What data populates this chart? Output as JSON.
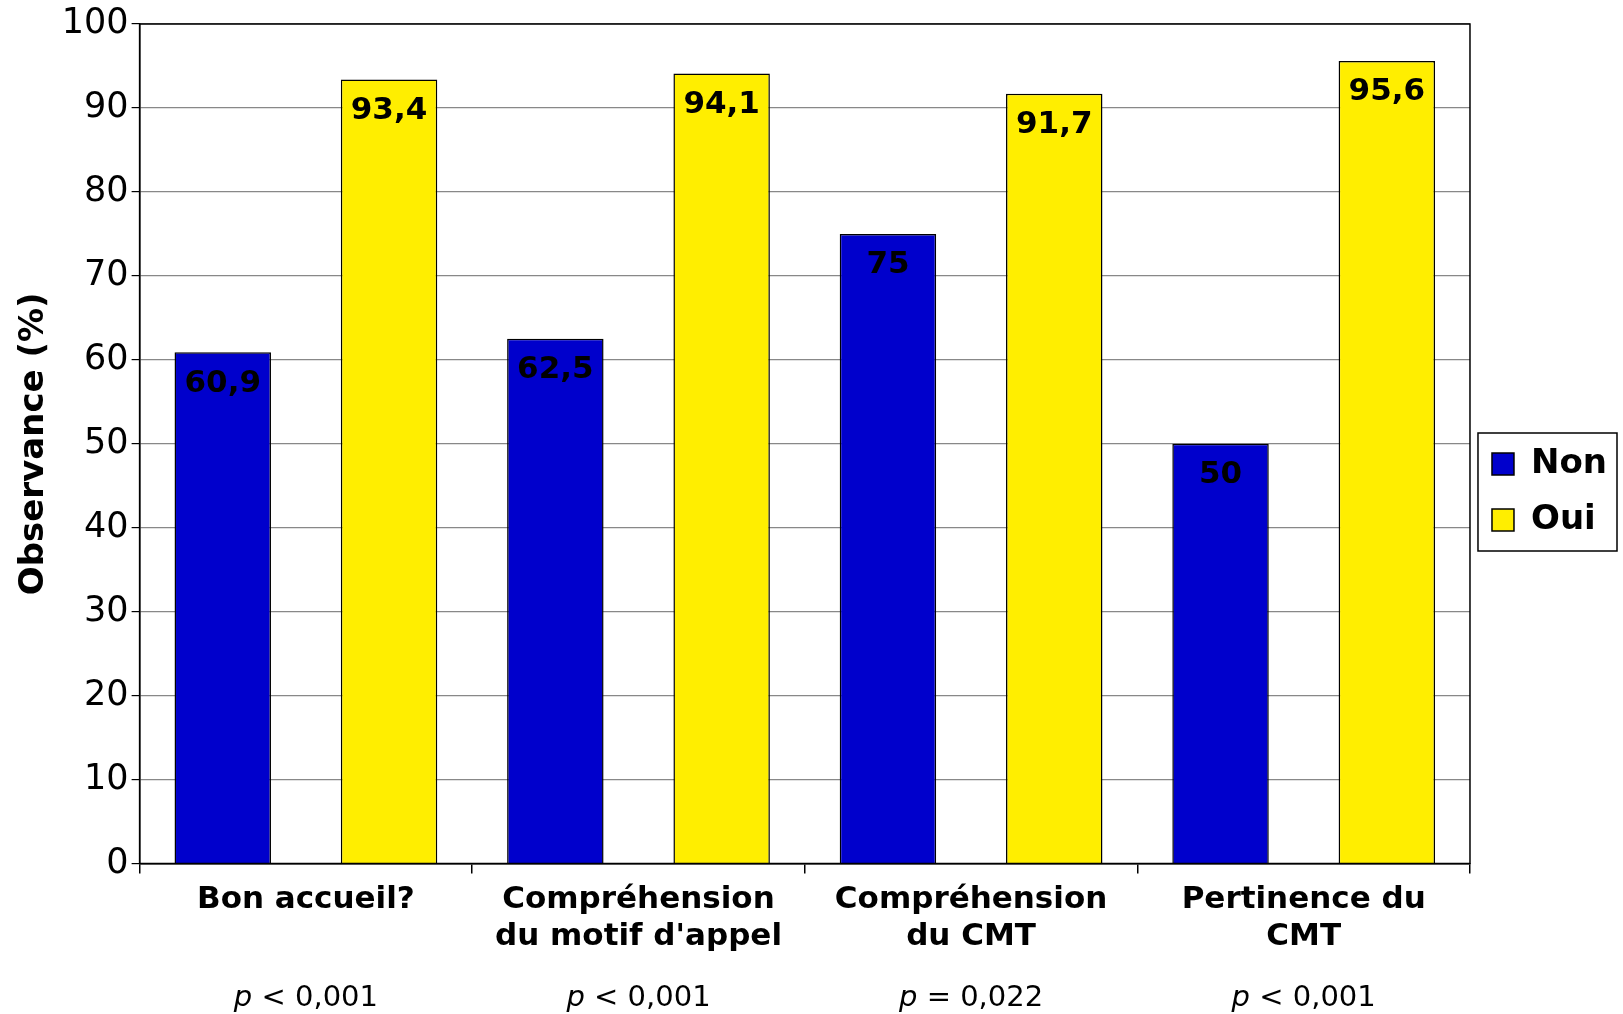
{
  "chart_data": {
    "type": "bar",
    "ylabel": "Observance (%)",
    "categories": [
      "Bon accueil?",
      "Compréhension du motif d'appel",
      "Compréhension du CMT",
      "Pertinence du CMT"
    ],
    "series": [
      {
        "name": "Non",
        "color": "#0000cc",
        "values": [
          60.9,
          62.5,
          75,
          50
        ],
        "value_labels": [
          "60,9",
          "62,5",
          "75",
          "50"
        ]
      },
      {
        "name": "Oui",
        "color": "#ffee00",
        "values": [
          93.4,
          94.1,
          91.7,
          95.6
        ],
        "value_labels": [
          "93,4",
          "94,1",
          "91,7",
          "95,6"
        ]
      }
    ],
    "ylim": [
      0,
      100
    ],
    "yticks": [
      0,
      10,
      20,
      30,
      40,
      50,
      60,
      70,
      80,
      90,
      100
    ],
    "grid": "y",
    "legend": "right",
    "annotations": [
      "p < 0,001",
      "p < 0,001",
      "p = 0,022",
      "p < 0,001"
    ]
  }
}
